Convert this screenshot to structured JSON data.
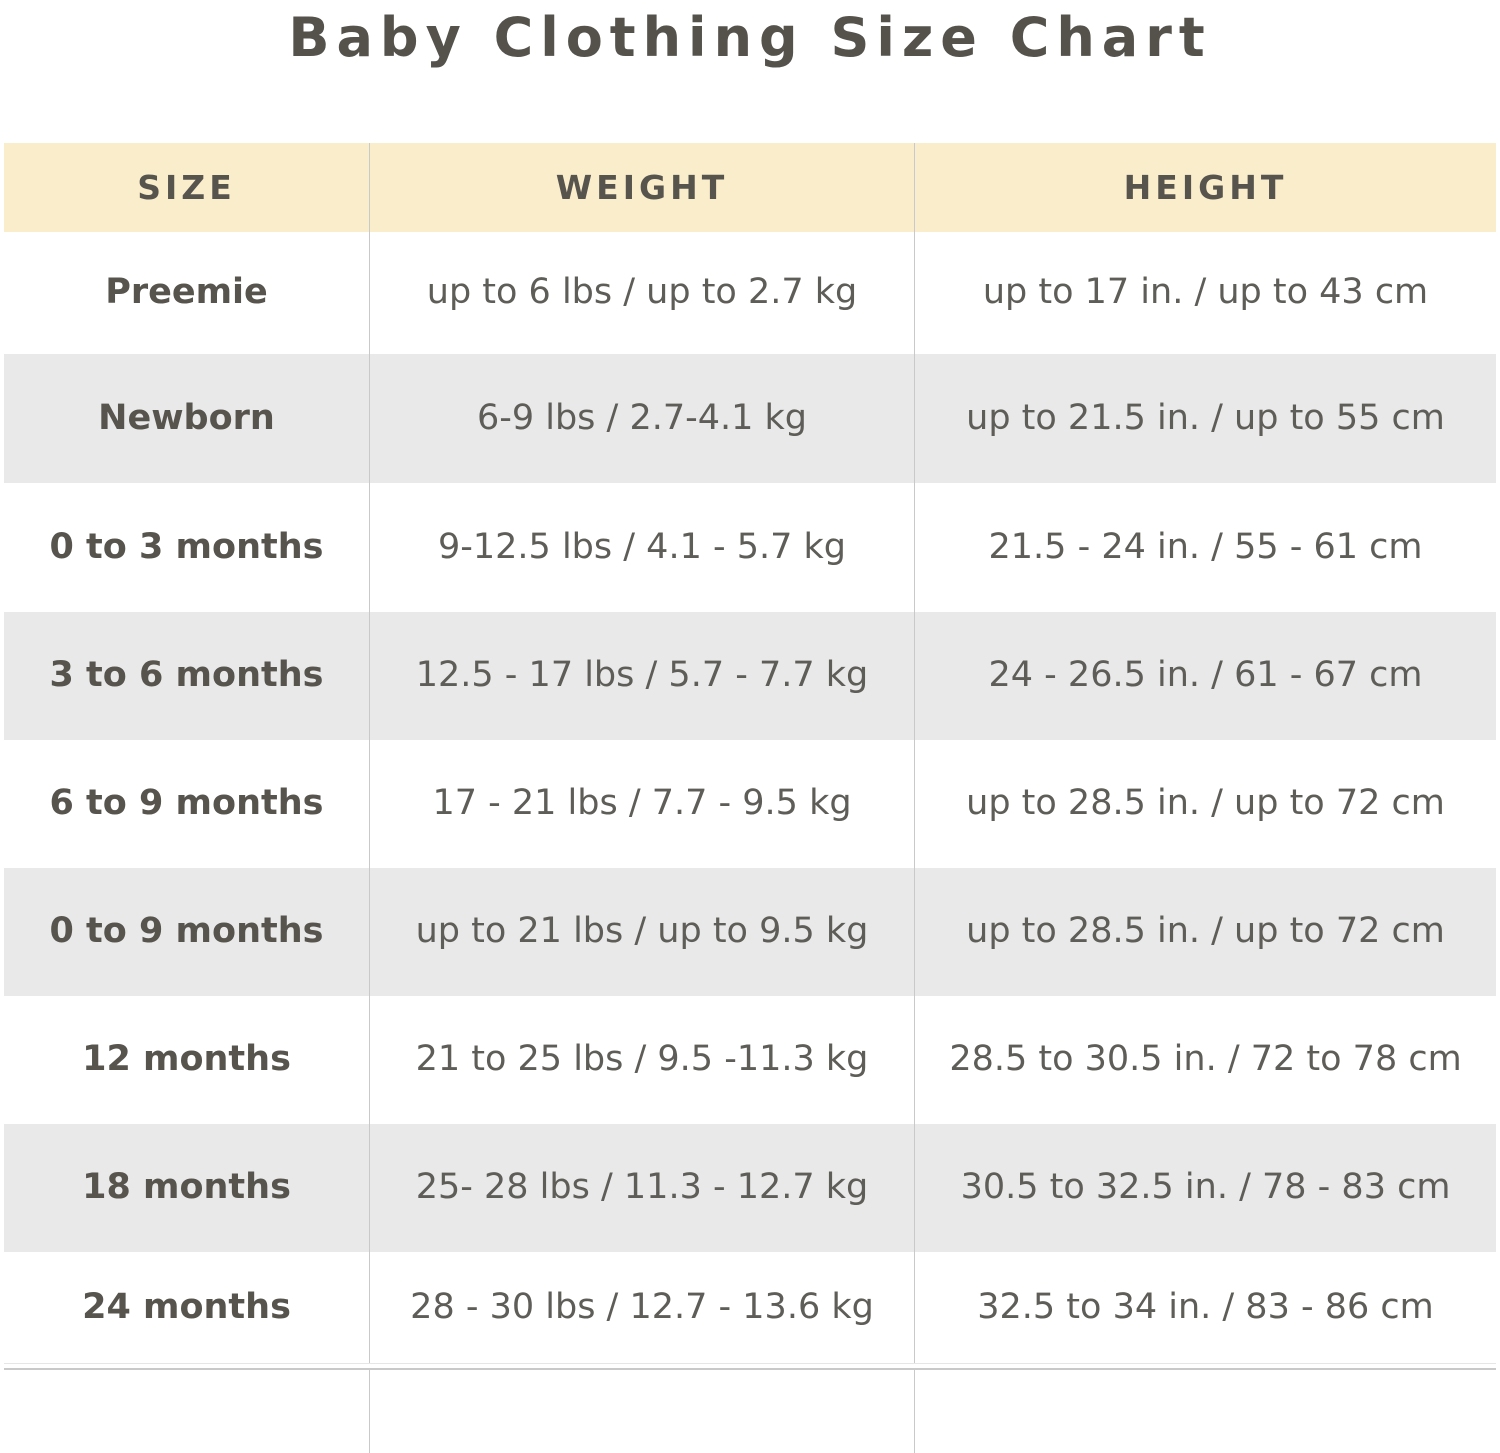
{
  "page": {
    "title": "Baby Clothing Size Chart"
  },
  "colors": {
    "header_bg": "#faedcb",
    "row_bg": "#ffffff",
    "row_alt_bg": "#e9e9e9",
    "divider": "#c9c9c9",
    "title_color": "#55524c",
    "strong_color": "#57544e",
    "cell_color": "#5f5d58"
  },
  "table": {
    "columns": [
      "SIZE",
      "WEIGHT",
      "HEIGHT"
    ],
    "rows": [
      {
        "size": "Preemie",
        "weight": "up to 6 lbs / up to 2.7 kg",
        "height": "up to 17 in. / up to 43 cm"
      },
      {
        "size": "Newborn",
        "weight": "6-9 lbs / 2.7-4.1 kg",
        "height": "up to 21.5 in. / up to 55 cm"
      },
      {
        "size": "0 to 3 months",
        "weight": "9-12.5 lbs / 4.1 - 5.7 kg",
        "height": "21.5 - 24 in. / 55 - 61 cm"
      },
      {
        "size": "3 to 6 months",
        "weight": "12.5 - 17 lbs / 5.7 - 7.7 kg",
        "height": "24 - 26.5 in. / 61 - 67 cm"
      },
      {
        "size": "6 to 9 months",
        "weight": "17 - 21 lbs / 7.7 - 9.5 kg",
        "height": "up to 28.5 in. / up to 72 cm"
      },
      {
        "size": "0 to 9 months",
        "weight": "up to 21 lbs / up to 9.5 kg",
        "height": "up to 28.5 in. / up to 72 cm"
      },
      {
        "size": "12 months",
        "weight": "21 to 25 lbs / 9.5 -11.3 kg",
        "height": "28.5 to 30.5 in. / 72 to 78 cm"
      },
      {
        "size": "18 months",
        "weight": "25- 28 lbs / 11.3 - 12.7 kg",
        "height": "30.5 to 32.5 in. / 78 - 83 cm"
      },
      {
        "size": "24 months",
        "weight": "28 - 30 lbs / 12.7 - 13.6 kg",
        "height": "32.5 to 34 in. / 83 - 86 cm"
      }
    ]
  },
  "chart_data": {
    "type": "table",
    "title": "Baby Clothing Size Chart",
    "columns": [
      "SIZE",
      "WEIGHT",
      "HEIGHT"
    ],
    "rows": [
      [
        "Preemie",
        "up to 6 lbs / up to 2.7 kg",
        "up to 17 in. / up to 43 cm"
      ],
      [
        "Newborn",
        "6-9 lbs / 2.7-4.1 kg",
        "up to 21.5 in. / up to 55 cm"
      ],
      [
        "0 to 3 months",
        "9-12.5 lbs / 4.1 - 5.7 kg",
        "21.5 - 24 in. / 55 - 61 cm"
      ],
      [
        "3 to 6 months",
        "12.5 - 17 lbs / 5.7 - 7.7 kg",
        "24 - 26.5 in. / 61 - 67 cm"
      ],
      [
        "6 to 9 months",
        "17 - 21 lbs / 7.7 - 9.5 kg",
        "up to 28.5 in. / up to 72 cm"
      ],
      [
        "0 to 9 months",
        "up to 21 lbs / up to 9.5 kg",
        "up to 28.5 in. / up to 72 cm"
      ],
      [
        "12 months",
        "21 to 25 lbs / 9.5 -11.3 kg",
        "28.5 to 30.5 in. / 72 to 78 cm"
      ],
      [
        "18 months",
        "25- 28 lbs / 11.3 - 12.7 kg",
        "30.5 to 32.5 in. / 78 - 83 cm"
      ],
      [
        "24 months",
        "28 - 30 lbs / 12.7 - 13.6 kg",
        "32.5 to 34 in. / 83 - 86 cm"
      ]
    ],
    "layout": {
      "header_background": "#faedcb",
      "alternating_row_background": "#e9e9e9",
      "trailing_empty_row": true
    }
  }
}
